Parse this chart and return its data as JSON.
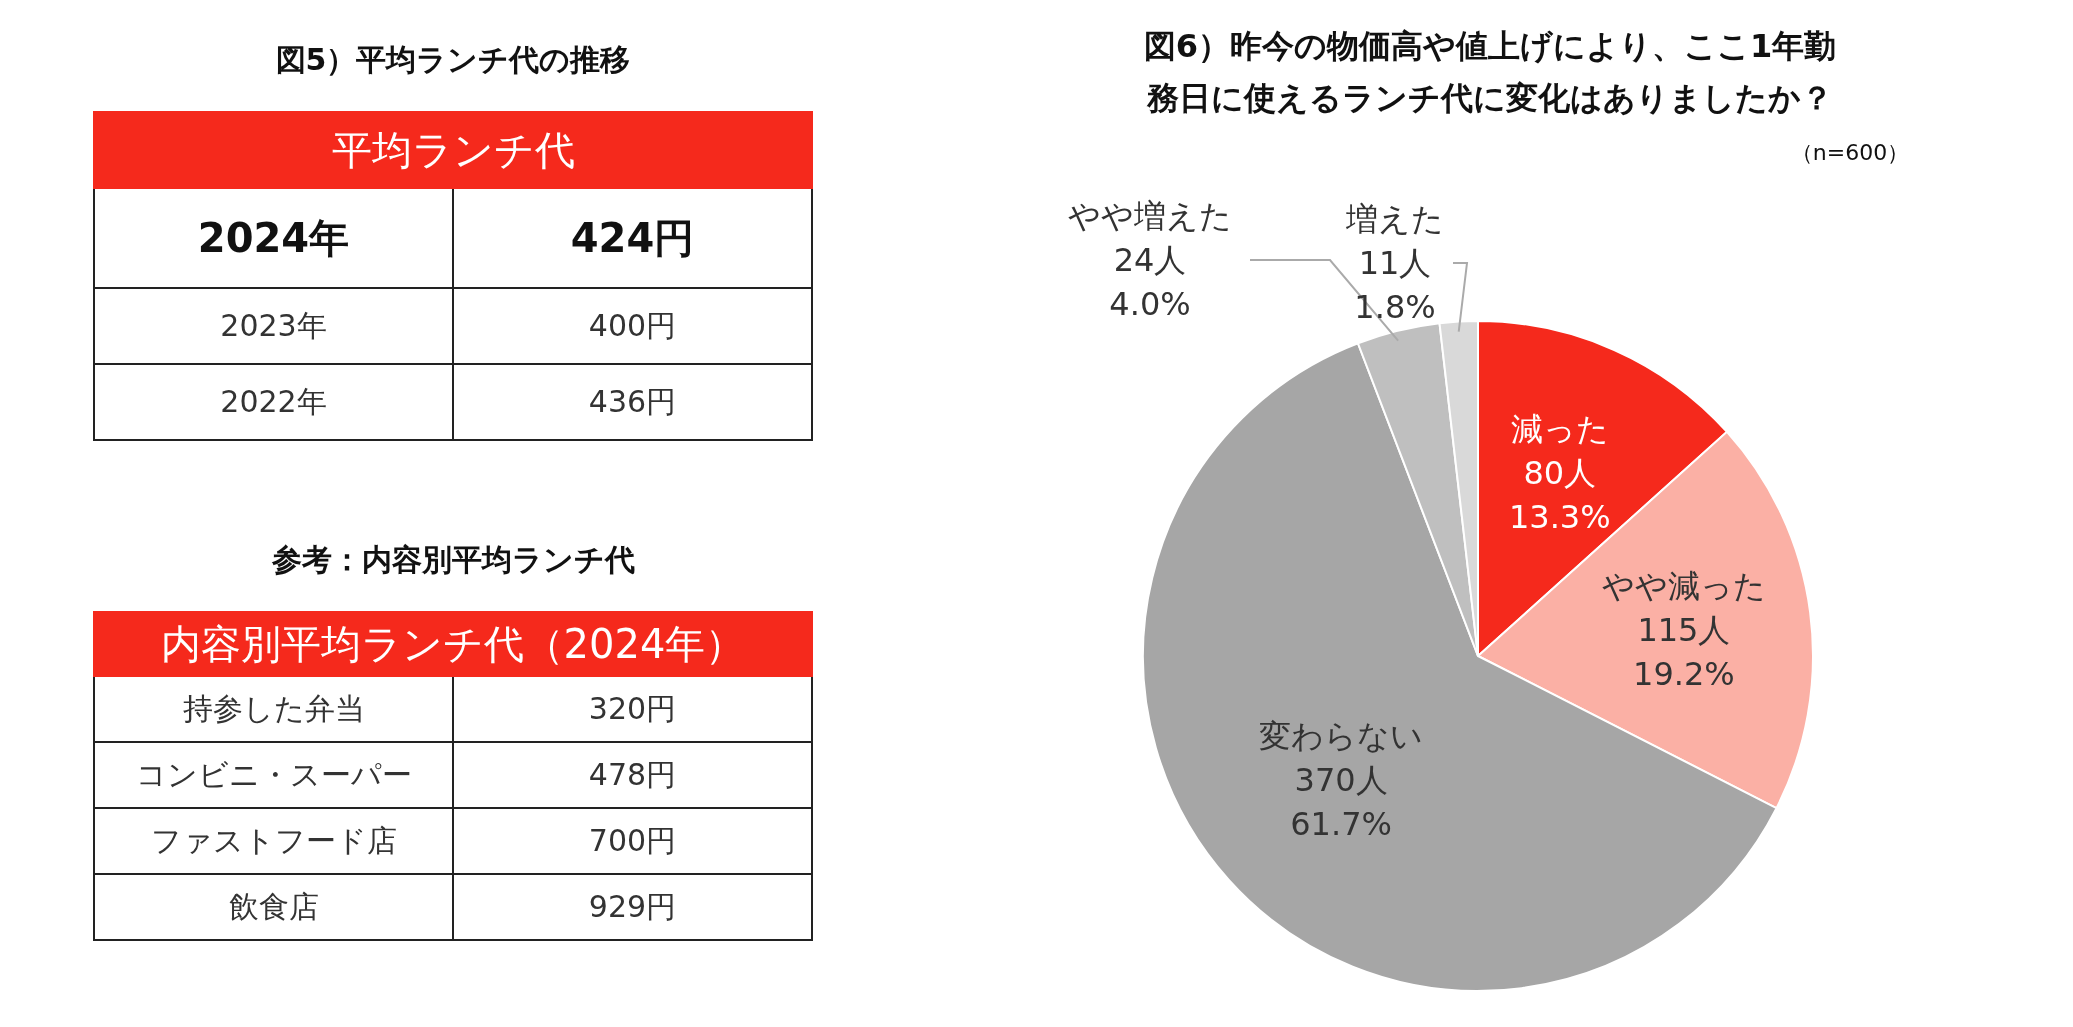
{
  "chart_data": [
    {
      "type": "other",
      "title": "図5）平均ランチ代の推移",
      "subtitle": "平均ランチ代",
      "categories": [
        "2024年",
        "2023年",
        "2022年"
      ],
      "value_labels": [
        "424円",
        "400円",
        "436円"
      ]
    },
    {
      "type": "other",
      "title": "参考：内容別平均ランチ代",
      "subtitle": "内容別平均ランチ代（2024年）",
      "categories": [
        "持参した弁当",
        "コンビニ・スーパー",
        "ファストフード店",
        "飲食店"
      ],
      "value_labels": [
        "320円",
        "478円",
        "700円",
        "929円"
      ]
    },
    {
      "type": "pie",
      "title": "図6）昨今の物価高や値上げにより、ここ1年勤務日に使えるランチ代に変化はありましたか？",
      "categories": [
        "減った",
        "やや減った",
        "変わらない",
        "やや増えた",
        "増えた"
      ],
      "values": [
        80,
        115,
        370,
        24,
        11
      ],
      "value_labels": [
        "80人\n13.3%",
        "115人\n19.2%",
        "370人\n61.7%",
        "24人\n4.0%",
        "11人\n1.8%"
      ],
      "colors": [
        "#f5291c",
        "#fbb0a5",
        "#a6a6a6",
        "#bfbfbf",
        "#d9d9d9"
      ],
      "annotations": [
        "（n=600）"
      ]
    }
  ]
}
